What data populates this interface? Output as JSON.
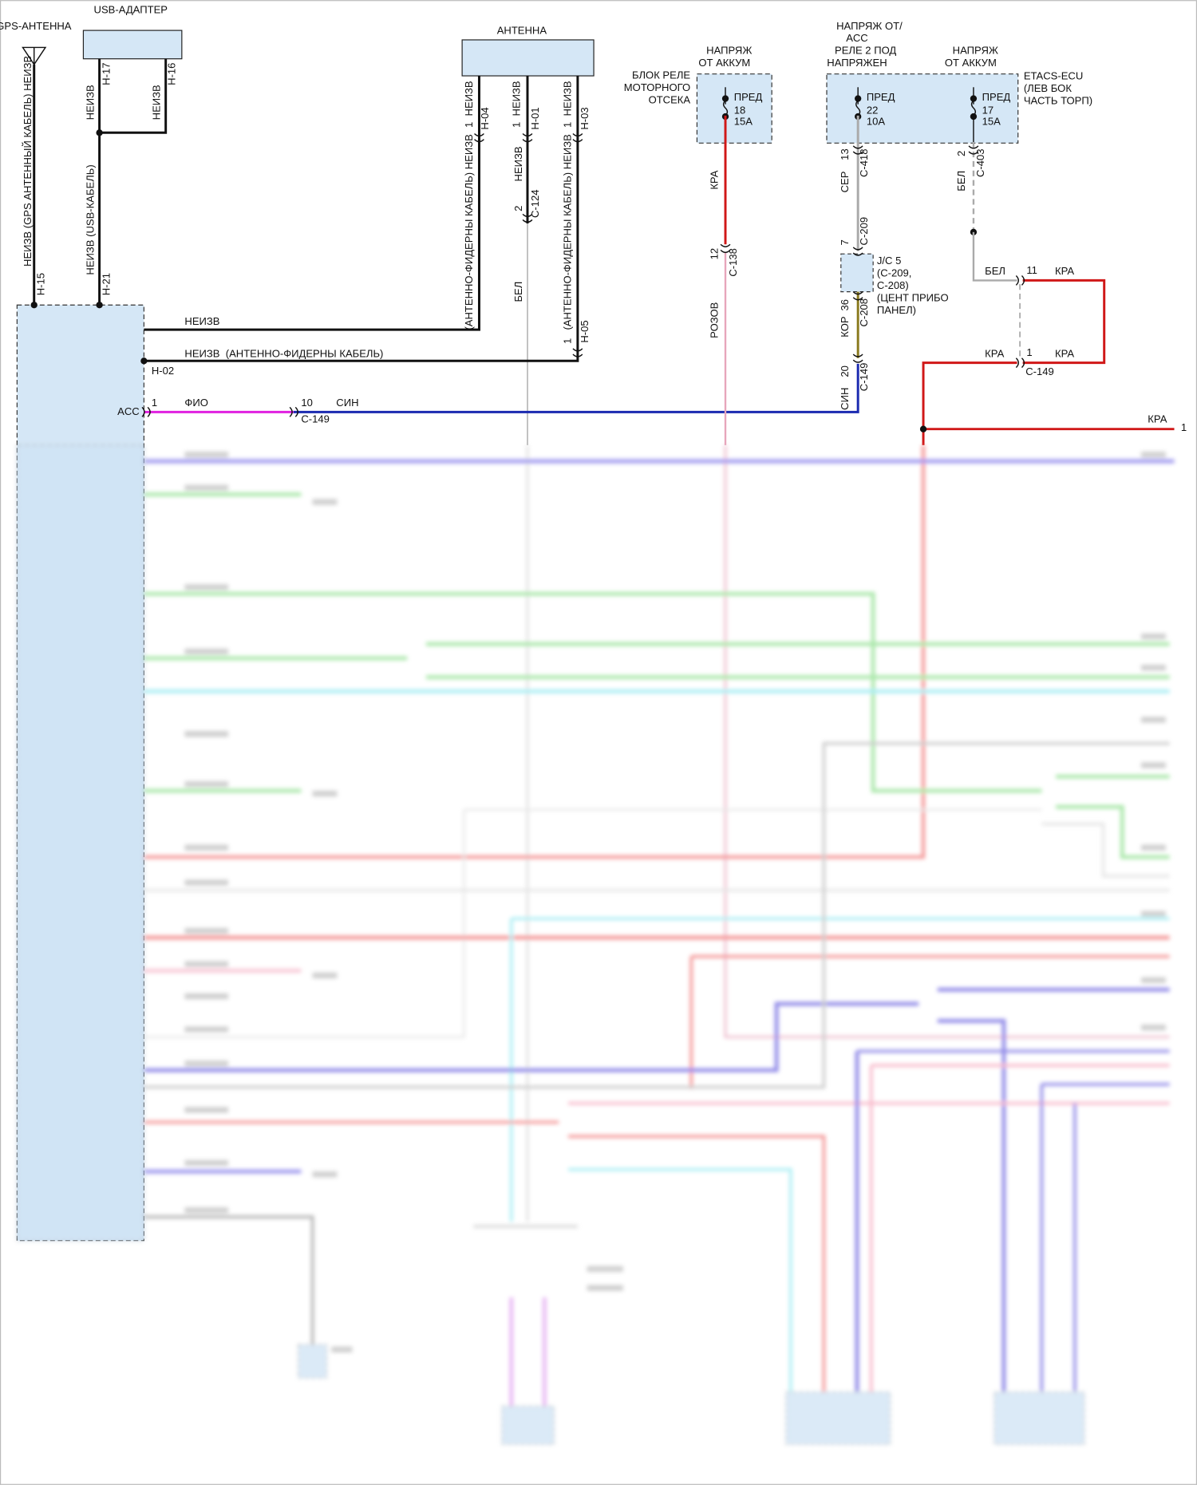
{
  "labels": [
    "GPS-АНТЕННА",
    "USB-АДАПТЕР",
    "АНТЕННА",
    "НАПРЯЖ",
    "ОТ АККУМ",
    "БЛОК РЕЛЕ",
    "МОТОРНОГО",
    "ОТСЕКА",
    "ПРЕД",
    "18",
    "15А",
    "НАПРЯЖ ОТ/",
    "ACC",
    "РЕЛЕ 2 ПОД",
    "НАПРЯЖЕН",
    "НАПРЯЖ",
    "ОТ АККУМ",
    "ETACS-ECU",
    "(ЛЕВ БОК",
    "ЧАСТЬ ТОРП)",
    "ПРЕД",
    "22",
    "10А",
    "ПРЕД",
    "17",
    "15А",
    "НЕИЗВ (GPS АНТЕННЫЙ КАБЕЛЬ) НЕИЗВ",
    "H-15",
    "НЕИЗВ",
    "H-17",
    "НЕИЗВ",
    "H-16",
    "НЕИЗВ (USB-КАБЕЛЬ)",
    "H-21",
    "1  НЕИЗВ",
    "H-04",
    "(АНТЕННО-ФИДЕРНЫ КАБЕЛЬ) НЕИЗВ",
    "1  НЕИЗВ",
    "H-01",
    "НЕИЗВ",
    "2",
    "C-124",
    "БЕЛ",
    "1  НЕИЗВ",
    "H-03",
    "(АНТЕННО-ФИДЕРНЫ КАБЕЛЬ) НЕИЗВ",
    "1",
    "H-05",
    "КРА",
    "12",
    "C-138",
    "РОЗОВ",
    "13",
    "C-418",
    "СЕР",
    "7",
    "C-209",
    "J/C 5",
    "(C-209,",
    "C-208)",
    "(ЦЕНТ ПРИБО",
    "ПАНЕЛ)",
    "36",
    "C-208",
    "КОР",
    "20",
    "C-149",
    "СИН",
    "2",
    "C-403",
    "БЕЛ",
    "БЕЛ",
    "11",
    "КРА",
    "КРА",
    "1",
    "КРА",
    "C-149",
    "КРА",
    "1",
    "НЕИЗВ",
    "НЕИЗВ  (АНТЕННО-ФИДЕРНЫ КАБЕЛЬ)",
    "H-02",
    "ACC",
    "1",
    "ФИО",
    "10",
    "C-149",
    "СИН"
  ]
}
